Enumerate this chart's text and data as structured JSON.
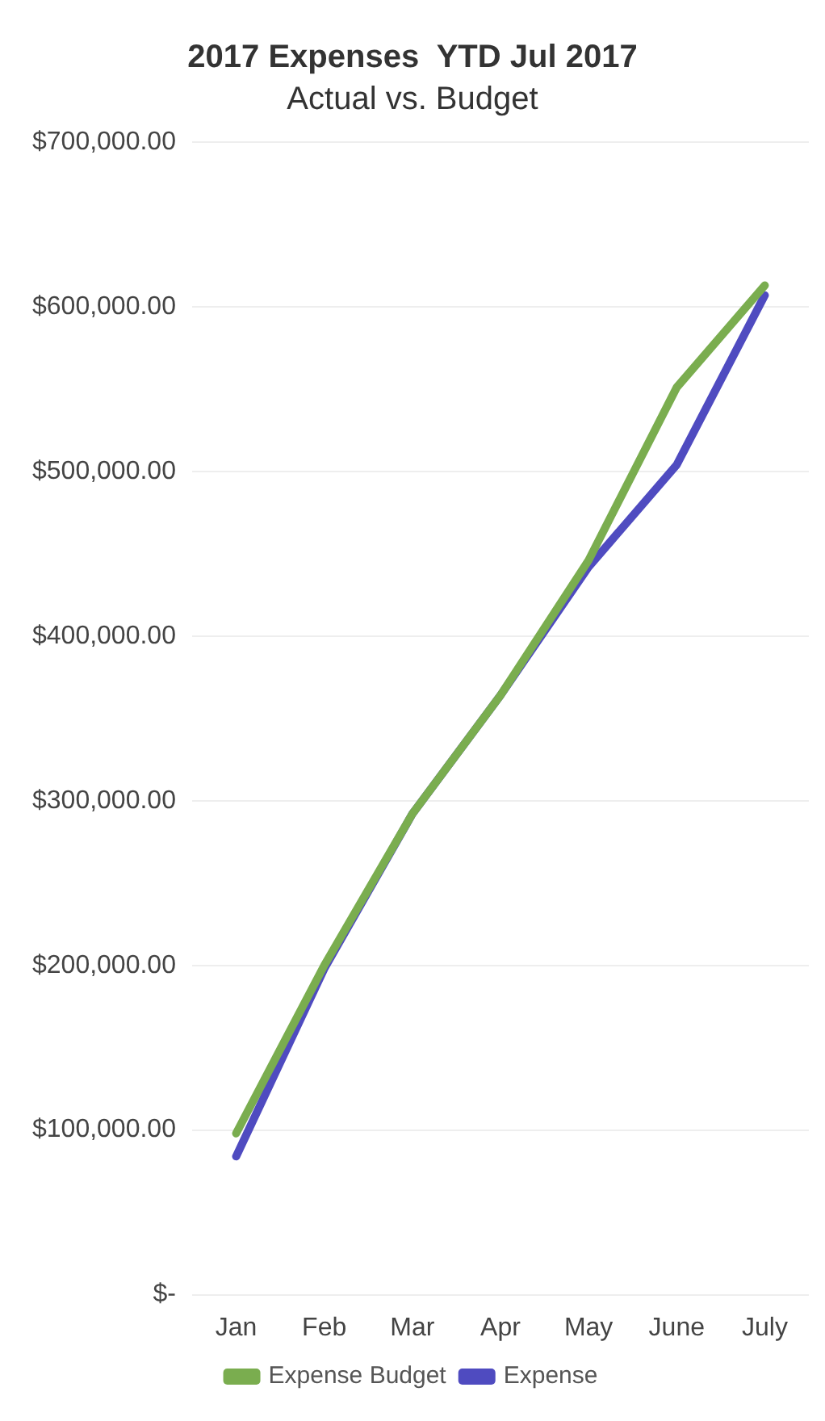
{
  "chart_data": {
    "type": "line",
    "title": "2017 Expenses  YTD Jul 2017",
    "subtitle": "Actual vs. Budget",
    "categories": [
      "Jan",
      "Feb",
      "Mar",
      "Apr",
      "May",
      "June",
      "July"
    ],
    "series": [
      {
        "name": "Expense Budget",
        "color": "#7aad4f",
        "values": [
          98000,
          200000,
          292000,
          364000,
          446000,
          551000,
          613000
        ]
      },
      {
        "name": "Expense",
        "color": "#4f4bc0",
        "values": [
          84000,
          198000,
          292000,
          364000,
          442000,
          504000,
          607000
        ]
      }
    ],
    "ylim": [
      0,
      700000
    ],
    "yticks": [
      {
        "value": 0,
        "label": "$-"
      },
      {
        "value": 100000,
        "label": "$100,000.00"
      },
      {
        "value": 200000,
        "label": "$200,000.00"
      },
      {
        "value": 300000,
        "label": "$300,000.00"
      },
      {
        "value": 400000,
        "label": "$400,000.00"
      },
      {
        "value": 500000,
        "label": "$500,000.00"
      },
      {
        "value": 600000,
        "label": "$600,000.00"
      },
      {
        "value": 700000,
        "label": "$700,000.00"
      }
    ],
    "grid": "y",
    "legend": "bottom",
    "marker": "none",
    "line_style": "solid"
  }
}
